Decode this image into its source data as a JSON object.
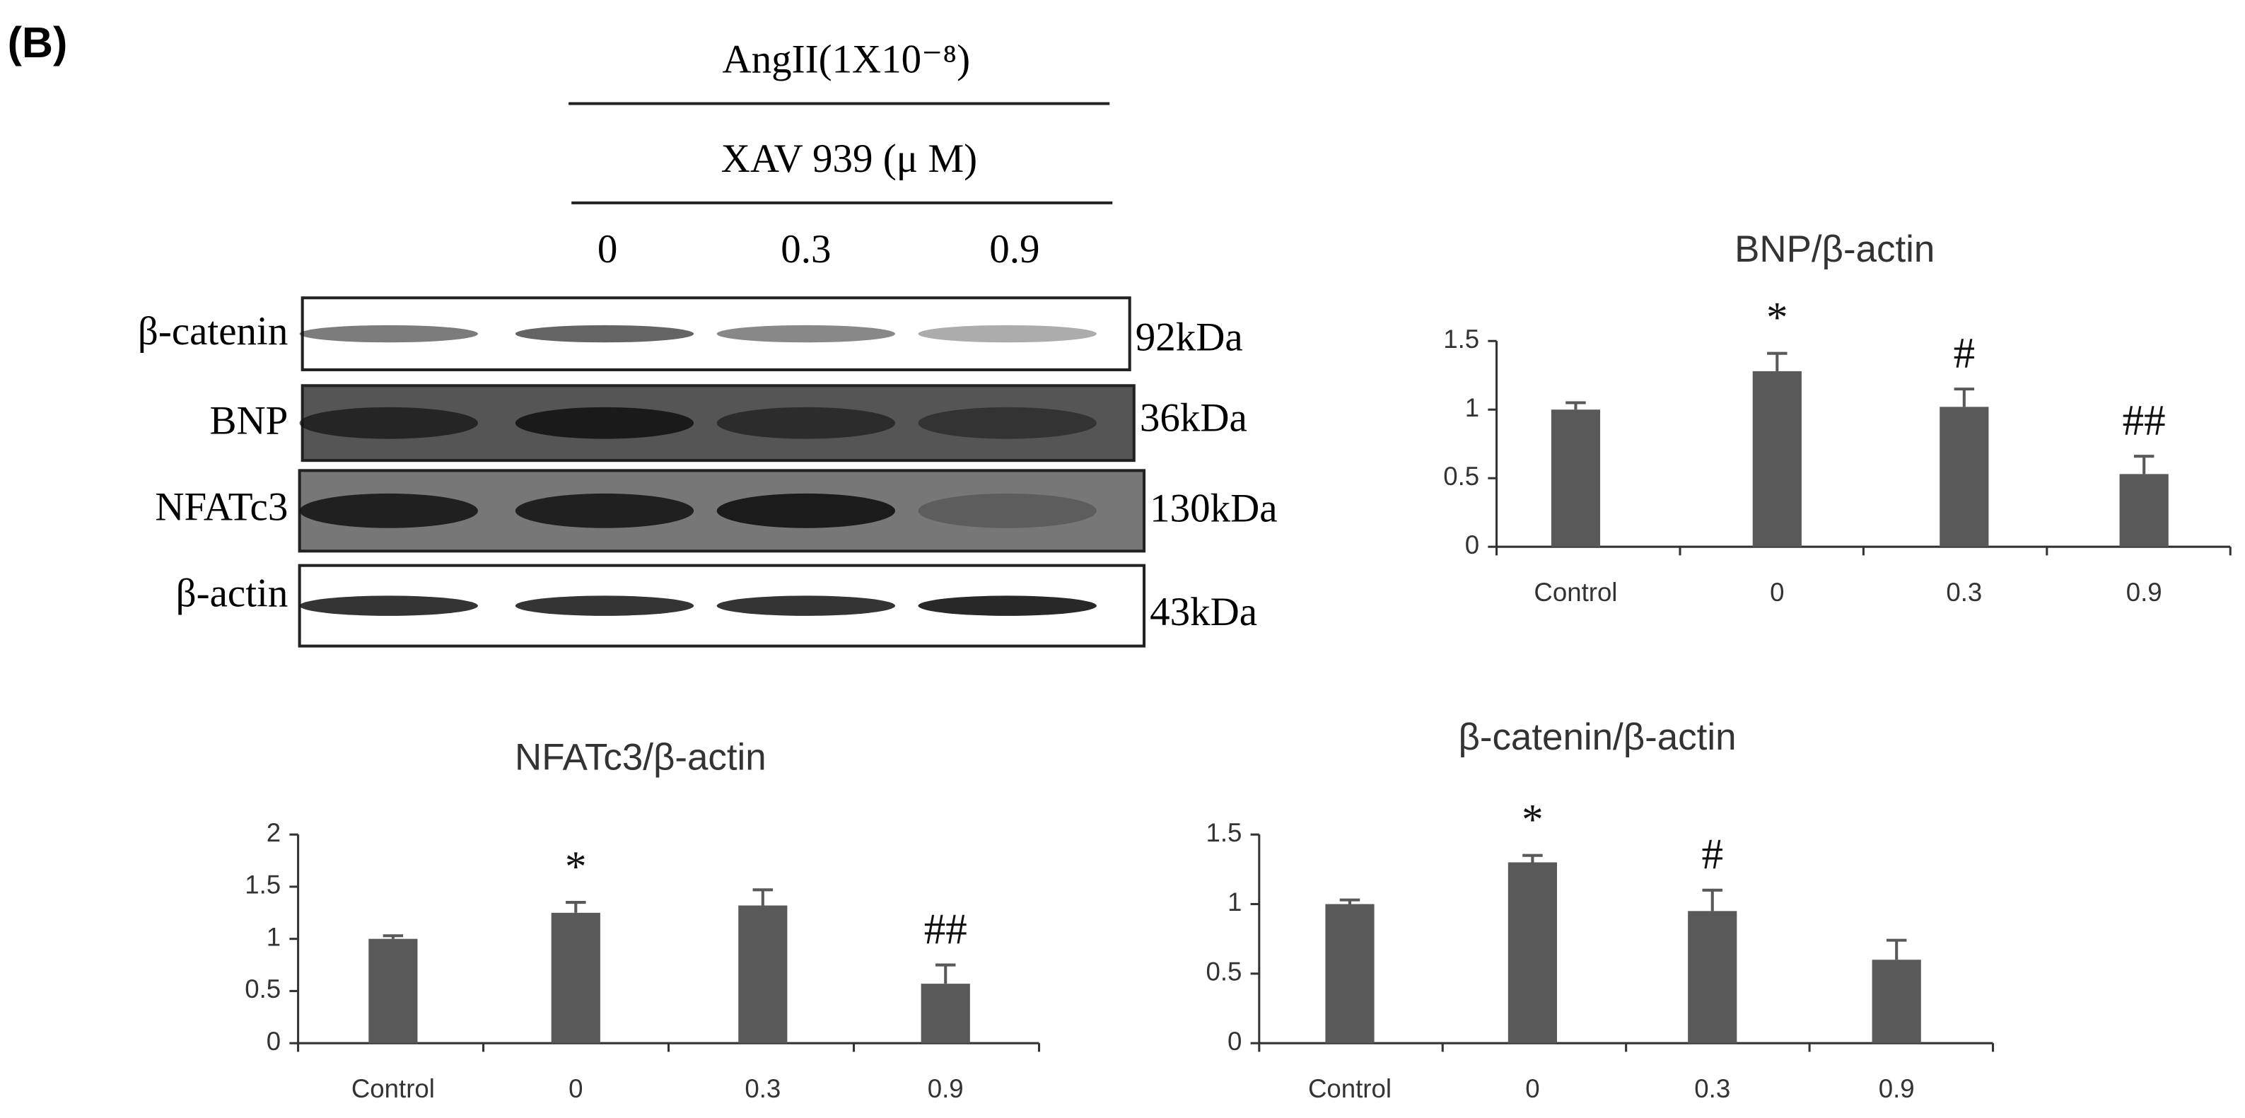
{
  "panel_label": "(B)",
  "blot": {
    "treatment": "AngII(1X10⁻⁸)",
    "inhibitor": "XAV 939 (μ M)",
    "doses": [
      "0",
      "0.3",
      "0.9"
    ],
    "rows": [
      {
        "protein": "β-catenin",
        "size": "92kDa"
      },
      {
        "protein": "BNP",
        "size": "36kDa"
      },
      {
        "protein": "NFATc3",
        "size": "130kDa"
      },
      {
        "protein": "β-actin",
        "size": "43kDa"
      }
    ]
  },
  "chart_data": [
    {
      "type": "bar",
      "title": "BNP/β-actin",
      "categories": [
        "Control",
        "0",
        "0.3",
        "0.9"
      ],
      "values": [
        1.0,
        1.28,
        1.02,
        0.53
      ],
      "errors": [
        0.05,
        0.13,
        0.13,
        0.13
      ],
      "annotations": [
        null,
        "*",
        "#",
        "##"
      ],
      "color": "#595959",
      "ylim": [
        0,
        1.5
      ],
      "yticks": [
        0,
        0.5,
        1,
        1.5
      ]
    },
    {
      "type": "bar",
      "title": "NFATc3/β-actin",
      "categories": [
        "Control",
        "0",
        "0.3",
        "0.9"
      ],
      "values": [
        1.0,
        1.25,
        1.32,
        0.57
      ],
      "errors": [
        0.03,
        0.1,
        0.15,
        0.18
      ],
      "annotations": [
        null,
        "*",
        null,
        "##"
      ],
      "color": "#595959",
      "ylim": [
        0,
        2
      ],
      "yticks": [
        0,
        0.5,
        1,
        1.5,
        2
      ]
    },
    {
      "type": "bar",
      "title": "β-catenin/β-actin",
      "categories": [
        "Control",
        "0",
        "0.3",
        "0.9"
      ],
      "values": [
        1.0,
        1.3,
        0.95,
        0.6
      ],
      "errors": [
        0.03,
        0.05,
        0.15,
        0.14
      ],
      "annotations": [
        null,
        "*",
        "#",
        null
      ],
      "color": "#595959",
      "ylim": [
        0,
        1.5
      ],
      "yticks": [
        0,
        0.5,
        1,
        1.5
      ]
    }
  ]
}
